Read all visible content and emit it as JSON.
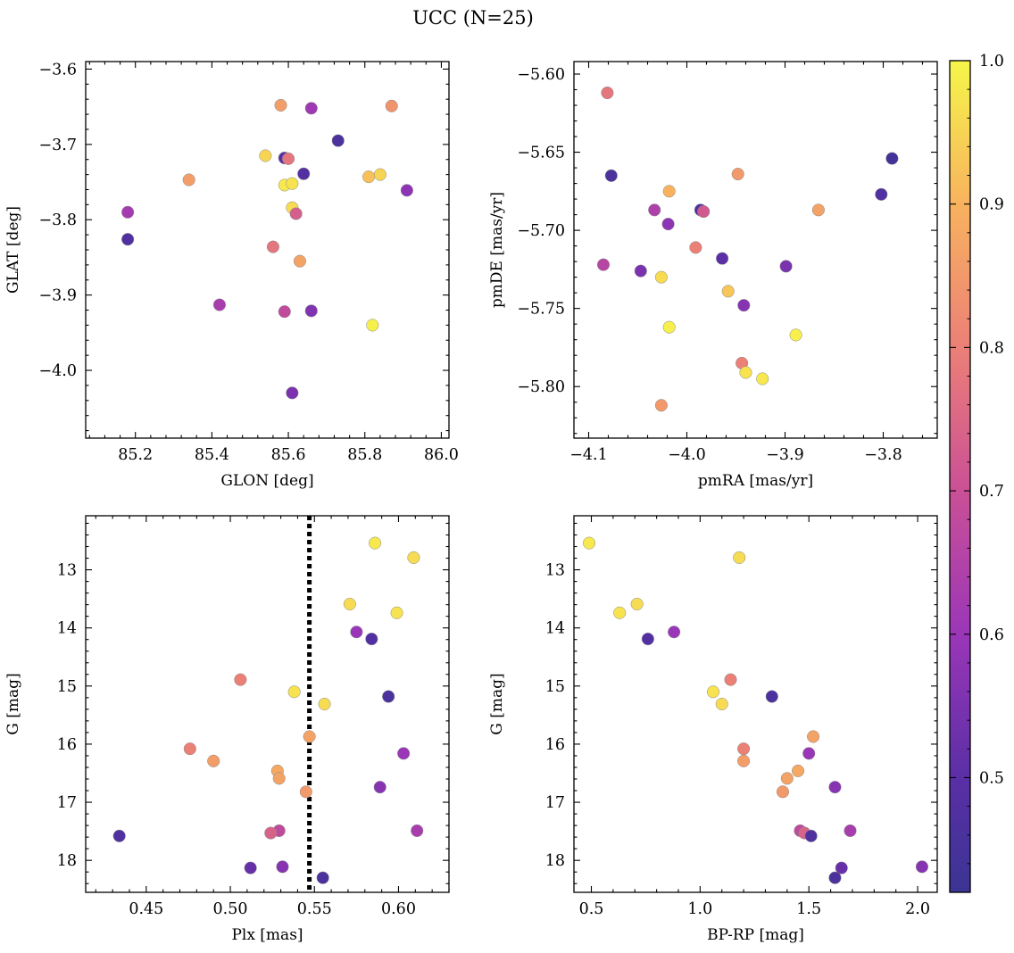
{
  "title": "UCC (N=25)",
  "colorbar": {
    "ticks": [
      0.5,
      0.6,
      0.7,
      0.8,
      0.9,
      1.0
    ],
    "tick_labels": [
      "0.5",
      "0.6",
      "0.7",
      "0.8",
      "0.9",
      "1.0"
    ],
    "range": [
      0.42,
      1.0
    ],
    "colormap": "plasma (dark blue to yellow)"
  },
  "chart_data": [
    {
      "type": "scatter",
      "xlabel": "GLON [deg]",
      "ylabel": "GLAT [deg]",
      "xlim": [
        85.07,
        86.02
      ],
      "ylim": [
        -4.09,
        -3.59
      ],
      "invert_y": false,
      "xticks": [
        85.2,
        85.4,
        85.6,
        85.8,
        86.0
      ],
      "xtick_labels": [
        "85.2",
        "85.4",
        "85.6",
        "85.8",
        "86.0"
      ],
      "yticks": [
        -4.0,
        -3.9,
        -3.8,
        -3.7,
        -3.6
      ],
      "ytick_labels": [
        "−4.0",
        "−3.9",
        "−3.8",
        "−3.7",
        "−3.6"
      ],
      "points": [
        {
          "x": 85.18,
          "y": -3.79,
          "c": 0.62
        },
        {
          "x": 85.18,
          "y": -3.826,
          "c": 0.47
        },
        {
          "x": 85.34,
          "y": -3.747,
          "c": 0.86
        },
        {
          "x": 85.42,
          "y": -3.913,
          "c": 0.63
        },
        {
          "x": 85.54,
          "y": -3.715,
          "c": 0.95
        },
        {
          "x": 85.58,
          "y": -3.648,
          "c": 0.86
        },
        {
          "x": 85.59,
          "y": -3.718,
          "c": 0.5
        },
        {
          "x": 85.6,
          "y": -3.719,
          "c": 0.78
        },
        {
          "x": 85.59,
          "y": -3.754,
          "c": 0.98
        },
        {
          "x": 85.61,
          "y": -3.752,
          "c": 0.97
        },
        {
          "x": 85.61,
          "y": -3.784,
          "c": 0.96
        },
        {
          "x": 85.62,
          "y": -3.792,
          "c": 0.73
        },
        {
          "x": 85.56,
          "y": -3.836,
          "c": 0.78
        },
        {
          "x": 85.63,
          "y": -3.855,
          "c": 0.87
        },
        {
          "x": 85.59,
          "y": -3.922,
          "c": 0.68
        },
        {
          "x": 85.66,
          "y": -3.921,
          "c": 0.56
        },
        {
          "x": 85.61,
          "y": -4.03,
          "c": 0.55
        },
        {
          "x": 85.64,
          "y": -3.739,
          "c": 0.48
        },
        {
          "x": 85.66,
          "y": -3.652,
          "c": 0.61
        },
        {
          "x": 85.73,
          "y": -3.695,
          "c": 0.46
        },
        {
          "x": 85.81,
          "y": -3.743,
          "c": 0.92
        },
        {
          "x": 85.84,
          "y": -3.74,
          "c": 0.95
        },
        {
          "x": 85.87,
          "y": -3.649,
          "c": 0.84
        },
        {
          "x": 85.91,
          "y": -3.761,
          "c": 0.58
        },
        {
          "x": 85.82,
          "y": -3.94,
          "c": 0.99
        }
      ]
    },
    {
      "type": "scatter",
      "xlabel": "pmRA [mas/yr]",
      "ylabel": "pmDE [mas/yr]",
      "xlim": [
        -4.115,
        -3.745
      ],
      "ylim": [
        -5.833,
        -5.592
      ],
      "invert_y": false,
      "xticks": [
        -4.1,
        -4.0,
        -3.9,
        -3.8
      ],
      "xtick_labels": [
        "−4.1",
        "−4.0",
        "−3.9",
        "−3.8"
      ],
      "yticks": [
        -5.8,
        -5.75,
        -5.7,
        -5.65,
        -5.6
      ],
      "ytick_labels": [
        "−5.80",
        "−5.75",
        "−5.70",
        "−5.65",
        "−5.60"
      ],
      "points": [
        {
          "x": -4.081,
          "y": -5.612,
          "c": 0.78
        },
        {
          "x": -4.077,
          "y": -5.665,
          "c": 0.46
        },
        {
          "x": -4.085,
          "y": -5.722,
          "c": 0.66
        },
        {
          "x": -4.047,
          "y": -5.726,
          "c": 0.55
        },
        {
          "x": -4.033,
          "y": -5.687,
          "c": 0.64
        },
        {
          "x": -4.026,
          "y": -5.73,
          "c": 0.96
        },
        {
          "x": -4.026,
          "y": -5.812,
          "c": 0.85
        },
        {
          "x": -4.018,
          "y": -5.675,
          "c": 0.9
        },
        {
          "x": -4.019,
          "y": -5.696,
          "c": 0.58
        },
        {
          "x": -4.018,
          "y": -5.762,
          "c": 0.99
        },
        {
          "x": -3.991,
          "y": -5.711,
          "c": 0.8
        },
        {
          "x": -3.986,
          "y": -5.687,
          "c": 0.47
        },
        {
          "x": -3.983,
          "y": -5.688,
          "c": 0.72
        },
        {
          "x": -3.964,
          "y": -5.718,
          "c": 0.5
        },
        {
          "x": -3.958,
          "y": -5.739,
          "c": 0.93
        },
        {
          "x": -3.948,
          "y": -5.664,
          "c": 0.85
        },
        {
          "x": -3.944,
          "y": -5.785,
          "c": 0.8
        },
        {
          "x": -3.942,
          "y": -5.748,
          "c": 0.57
        },
        {
          "x": -3.94,
          "y": -5.791,
          "c": 0.97
        },
        {
          "x": -3.923,
          "y": -5.795,
          "c": 0.98
        },
        {
          "x": -3.899,
          "y": -5.723,
          "c": 0.55
        },
        {
          "x": -3.889,
          "y": -5.767,
          "c": 0.99
        },
        {
          "x": -3.866,
          "y": -5.687,
          "c": 0.87
        },
        {
          "x": -3.802,
          "y": -5.677,
          "c": 0.48
        },
        {
          "x": -3.791,
          "y": -5.654,
          "c": 0.44
        }
      ]
    },
    {
      "type": "scatter",
      "xlabel": "Plx [mas]",
      "ylabel": "G [mag]",
      "xlim": [
        0.414,
        0.63
      ],
      "ylim": [
        12.07,
        18.55
      ],
      "invert_y": true,
      "xticks": [
        0.45,
        0.5,
        0.55,
        0.6
      ],
      "xtick_labels": [
        "0.45",
        "0.50",
        "0.55",
        "0.60"
      ],
      "yticks": [
        13,
        14,
        15,
        16,
        17,
        18
      ],
      "ytick_labels": [
        "13",
        "14",
        "15",
        "16",
        "17",
        "18"
      ],
      "vline": {
        "x": 0.547,
        "style": "dotted",
        "color": "#000000"
      },
      "points": [
        {
          "x": 0.586,
          "y": 12.54,
          "c": 0.98
        },
        {
          "x": 0.609,
          "y": 12.79,
          "c": 0.96
        },
        {
          "x": 0.571,
          "y": 13.59,
          "c": 0.96
        },
        {
          "x": 0.599,
          "y": 13.74,
          "c": 0.97
        },
        {
          "x": 0.575,
          "y": 14.07,
          "c": 0.6
        },
        {
          "x": 0.584,
          "y": 14.19,
          "c": 0.48
        },
        {
          "x": 0.506,
          "y": 14.89,
          "c": 0.8
        },
        {
          "x": 0.538,
          "y": 15.1,
          "c": 0.97
        },
        {
          "x": 0.594,
          "y": 15.18,
          "c": 0.46
        },
        {
          "x": 0.556,
          "y": 15.31,
          "c": 0.96
        },
        {
          "x": 0.547,
          "y": 15.87,
          "c": 0.87
        },
        {
          "x": 0.476,
          "y": 16.08,
          "c": 0.8
        },
        {
          "x": 0.603,
          "y": 16.16,
          "c": 0.6
        },
        {
          "x": 0.49,
          "y": 16.29,
          "c": 0.86
        },
        {
          "x": 0.528,
          "y": 16.46,
          "c": 0.88
        },
        {
          "x": 0.529,
          "y": 16.59,
          "c": 0.87
        },
        {
          "x": 0.589,
          "y": 16.74,
          "c": 0.57
        },
        {
          "x": 0.545,
          "y": 16.82,
          "c": 0.85
        },
        {
          "x": 0.529,
          "y": 17.49,
          "c": 0.68
        },
        {
          "x": 0.524,
          "y": 17.53,
          "c": 0.74
        },
        {
          "x": 0.611,
          "y": 17.49,
          "c": 0.63
        },
        {
          "x": 0.434,
          "y": 17.58,
          "c": 0.47
        },
        {
          "x": 0.512,
          "y": 18.13,
          "c": 0.52
        },
        {
          "x": 0.531,
          "y": 18.11,
          "c": 0.57
        },
        {
          "x": 0.555,
          "y": 18.3,
          "c": 0.46
        }
      ]
    },
    {
      "type": "scatter",
      "xlabel": "BP-RP [mag]",
      "ylabel": "G [mag]",
      "xlim": [
        0.42,
        2.09
      ],
      "ylim": [
        12.07,
        18.55
      ],
      "invert_y": true,
      "xticks": [
        0.5,
        1.0,
        1.5,
        2.0
      ],
      "xtick_labels": [
        "0.5",
        "1.0",
        "1.5",
        "2.0"
      ],
      "yticks": [
        13,
        14,
        15,
        16,
        17,
        18
      ],
      "ytick_labels": [
        "13",
        "14",
        "15",
        "16",
        "17",
        "18"
      ],
      "points": [
        {
          "x": 0.49,
          "y": 12.54,
          "c": 0.98
        },
        {
          "x": 1.18,
          "y": 12.79,
          "c": 0.96
        },
        {
          "x": 0.71,
          "y": 13.59,
          "c": 0.96
        },
        {
          "x": 0.63,
          "y": 13.74,
          "c": 0.97
        },
        {
          "x": 0.88,
          "y": 14.07,
          "c": 0.6
        },
        {
          "x": 0.76,
          "y": 14.19,
          "c": 0.48
        },
        {
          "x": 1.14,
          "y": 14.89,
          "c": 0.8
        },
        {
          "x": 1.06,
          "y": 15.1,
          "c": 0.97
        },
        {
          "x": 1.33,
          "y": 15.18,
          "c": 0.46
        },
        {
          "x": 1.1,
          "y": 15.31,
          "c": 0.96
        },
        {
          "x": 1.52,
          "y": 15.87,
          "c": 0.87
        },
        {
          "x": 1.2,
          "y": 16.08,
          "c": 0.8
        },
        {
          "x": 1.5,
          "y": 16.16,
          "c": 0.6
        },
        {
          "x": 1.2,
          "y": 16.29,
          "c": 0.86
        },
        {
          "x": 1.45,
          "y": 16.46,
          "c": 0.88
        },
        {
          "x": 1.4,
          "y": 16.59,
          "c": 0.87
        },
        {
          "x": 1.62,
          "y": 16.74,
          "c": 0.57
        },
        {
          "x": 1.38,
          "y": 16.82,
          "c": 0.85
        },
        {
          "x": 1.46,
          "y": 17.49,
          "c": 0.68
        },
        {
          "x": 1.48,
          "y": 17.53,
          "c": 0.74
        },
        {
          "x": 1.69,
          "y": 17.49,
          "c": 0.63
        },
        {
          "x": 1.51,
          "y": 17.58,
          "c": 0.47
        },
        {
          "x": 1.65,
          "y": 18.13,
          "c": 0.52
        },
        {
          "x": 2.02,
          "y": 18.11,
          "c": 0.57
        },
        {
          "x": 1.62,
          "y": 18.3,
          "c": 0.46
        }
      ]
    }
  ]
}
